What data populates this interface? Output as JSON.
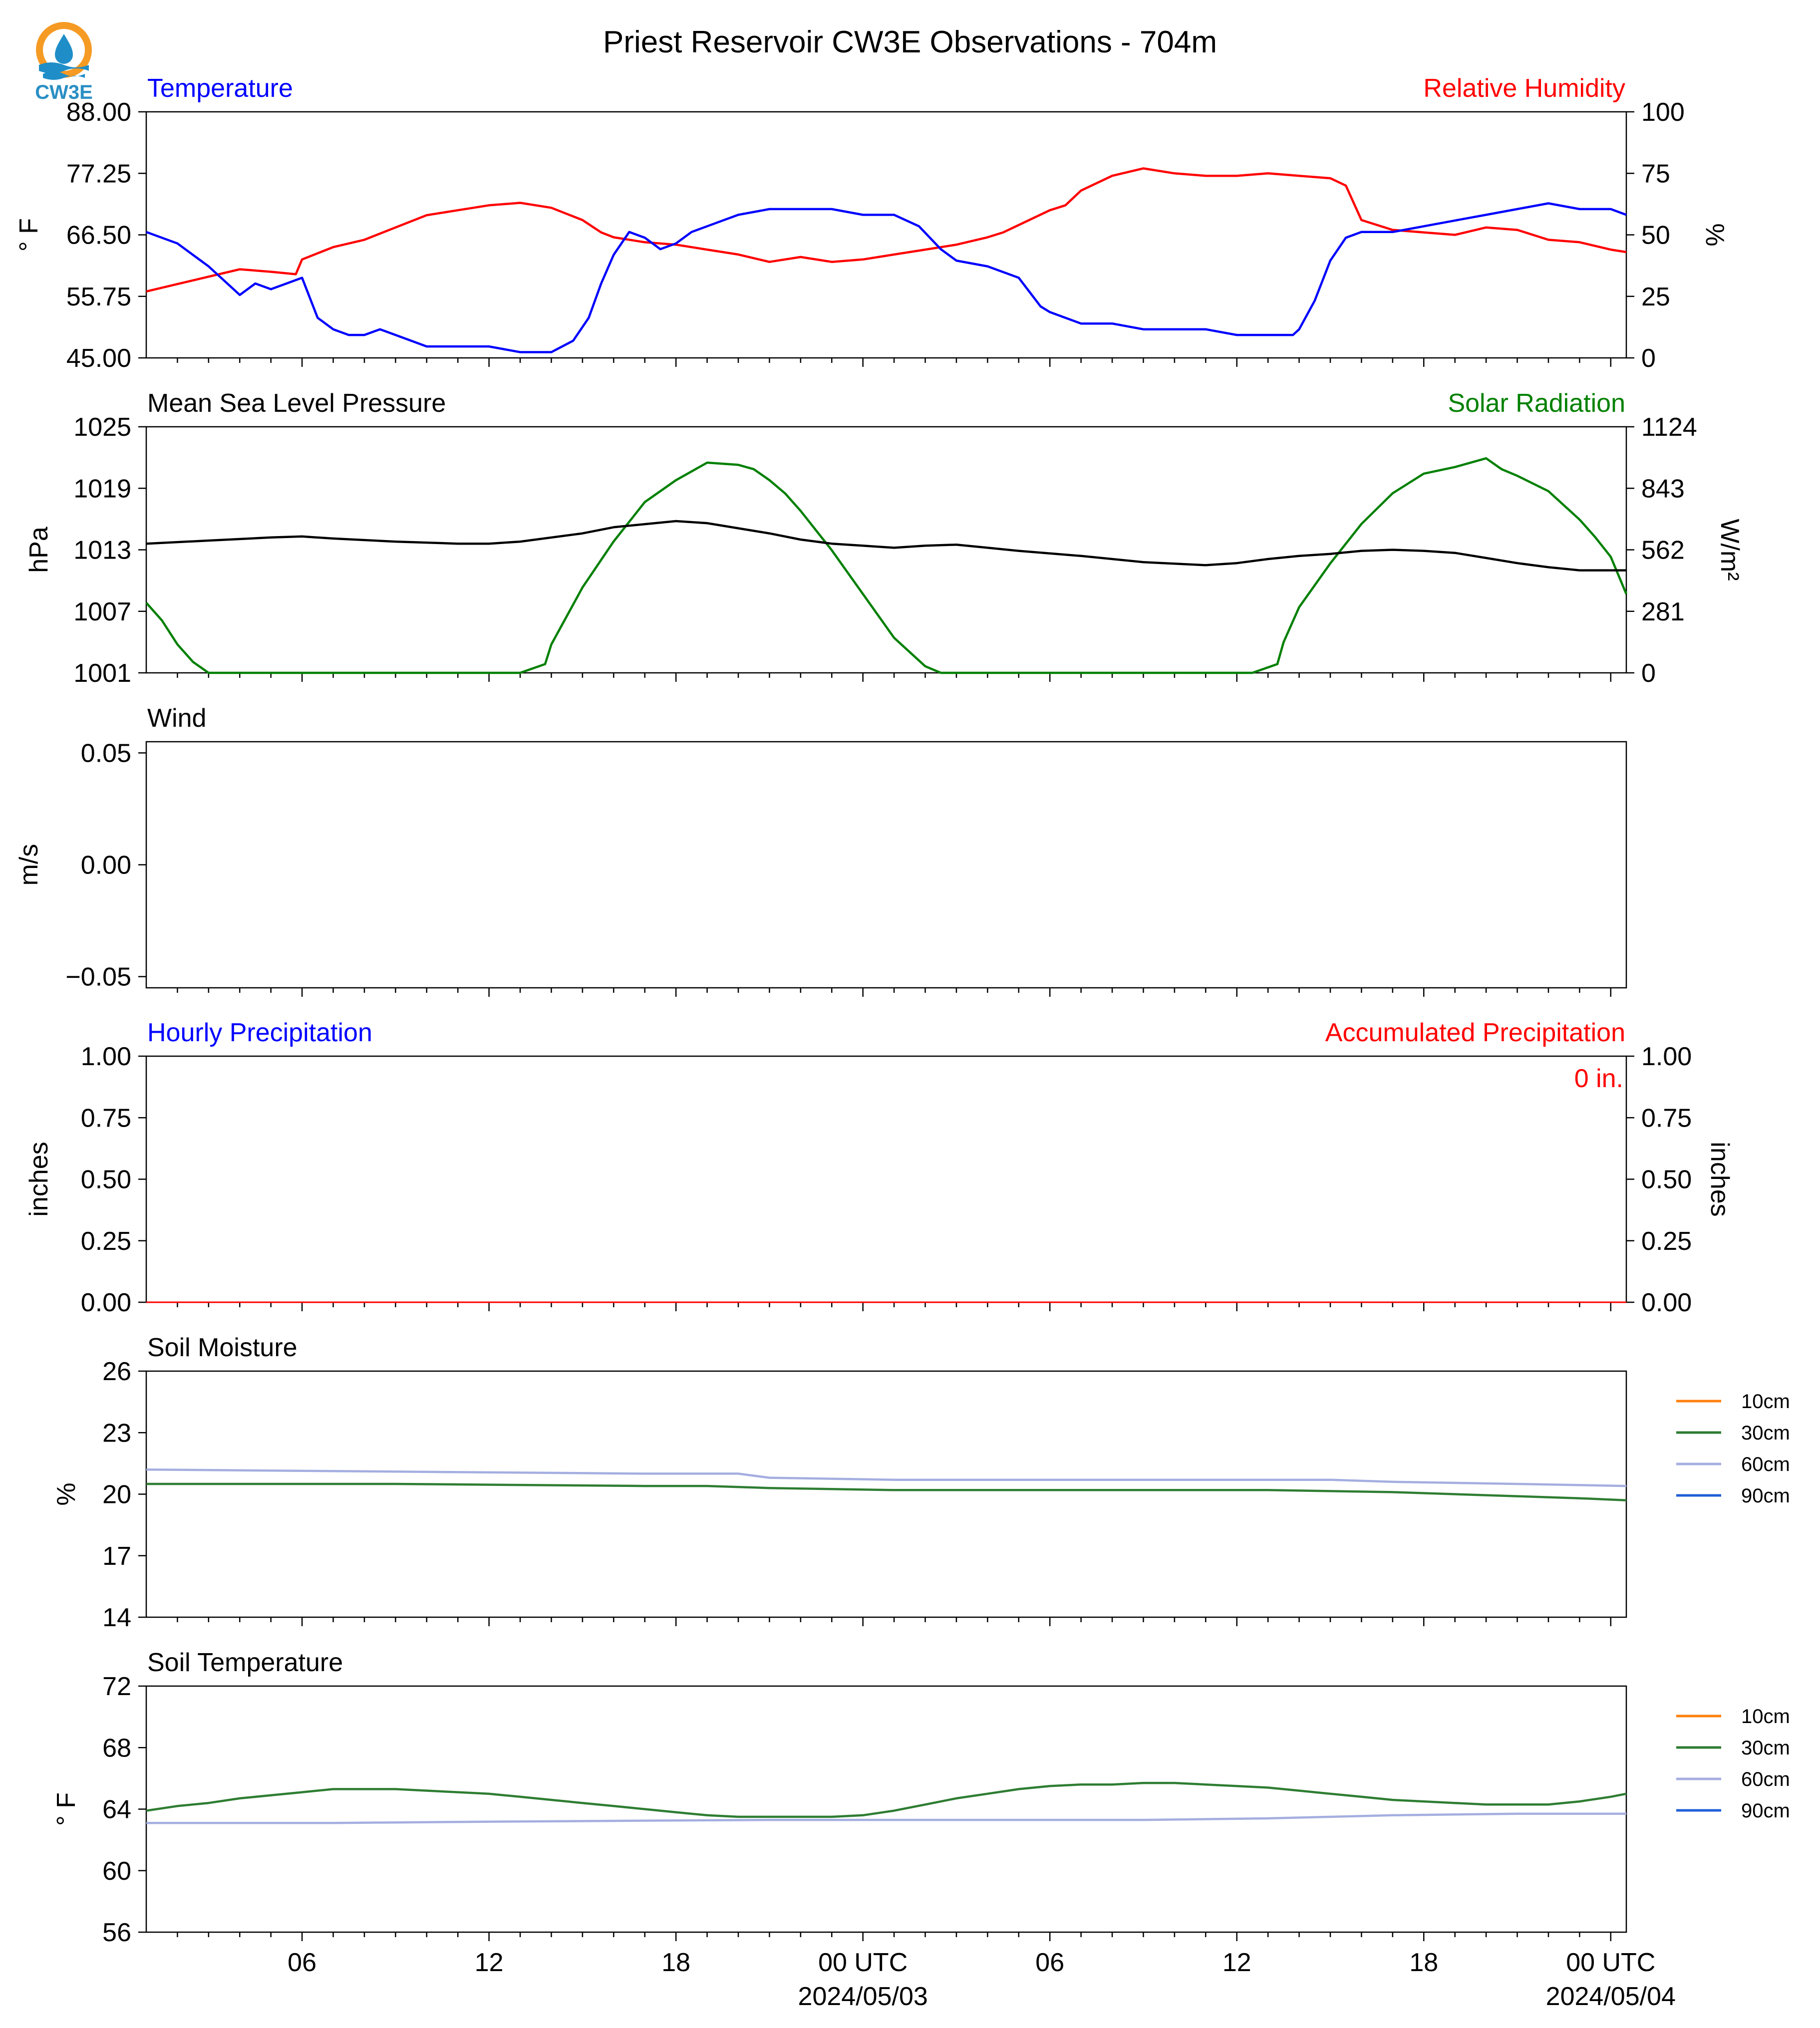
{
  "figure": {
    "title": "Priest Reservoir CW3E Observations - 704m",
    "logo_text": "CW3E",
    "colors": {
      "blue": "#0000ff",
      "red": "#ff0000",
      "green": "#008000",
      "black": "#000000",
      "orange": "#ff7f0e",
      "soil30": "#2e7d32",
      "soil60": "#a4aee0",
      "soil90": "#1f5fd6"
    }
  },
  "xaxis": {
    "range_hours": [
      0,
      47.5
    ],
    "tick_labels": [
      "06",
      "12",
      "18",
      "00 UTC",
      "06",
      "12",
      "18",
      "00 UTC"
    ],
    "tick_hours": [
      5,
      11,
      17,
      23,
      29,
      35,
      41,
      47
    ],
    "date_labels": [
      {
        "hour": 23,
        "text": "2024/05/03"
      },
      {
        "hour": 47,
        "text": "2024/05/04"
      }
    ]
  },
  "panels": {
    "temp_rh": {
      "left_title": "Temperature",
      "right_title": "Relative Humidity",
      "left_unit": "° F",
      "right_unit": "%",
      "left_ticks": [
        "88.00",
        "77.25",
        "66.50",
        "55.75",
        "45.00"
      ],
      "right_ticks": [
        "100",
        "75",
        "50",
        "25",
        "0"
      ]
    },
    "pressure_solar": {
      "left_title": "Mean Sea Level Pressure",
      "right_title": "Solar Radiation",
      "left_unit": "hPa",
      "right_unit": "W/m²",
      "left_ticks": [
        "1025",
        "1019",
        "1013",
        "1007",
        "1001"
      ],
      "right_ticks": [
        "1124",
        "843",
        "562",
        "281",
        "0"
      ]
    },
    "wind": {
      "left_title": "Wind",
      "left_unit": "m/s",
      "left_ticks": [
        "0.05",
        "0.00",
        "−0.05"
      ]
    },
    "precip": {
      "left_title": "Hourly Precipitation",
      "right_title": "Accumulated Precipitation",
      "left_unit": "inches",
      "right_unit": "inches",
      "left_ticks": [
        "1.00",
        "0.75",
        "0.50",
        "0.25",
        "0.00"
      ],
      "right_ticks": [
        "1.00",
        "0.75",
        "0.50",
        "0.25",
        "0.00"
      ],
      "accum_label": "0 in."
    },
    "soil_moisture": {
      "left_title": "Soil Moisture",
      "left_unit": "%",
      "left_ticks": [
        "26",
        "23",
        "20",
        "17",
        "14"
      ],
      "legend": [
        "10cm",
        "30cm",
        "60cm",
        "90cm"
      ]
    },
    "soil_temp": {
      "left_title": "Soil Temperature",
      "left_unit": "° F",
      "left_ticks": [
        "72",
        "68",
        "64",
        "60",
        "56"
      ],
      "legend": [
        "10cm",
        "30cm",
        "60cm",
        "90cm"
      ]
    }
  },
  "chart_data": [
    {
      "type": "line",
      "title": "Temperature / Relative Humidity",
      "x_unit": "hours since 2024/05/02 00 UTC",
      "xlim": [
        0,
        47.5
      ],
      "series": [
        {
          "name": "Temperature",
          "axis": "left",
          "ylim": [
            45,
            88
          ],
          "color": "#0000ff",
          "x": [
            0,
            1,
            2,
            2.8,
            3,
            3.5,
            4,
            4.5,
            5,
            5.5,
            6,
            6.5,
            7,
            7.5,
            8,
            8.5,
            9,
            10,
            11,
            12,
            13,
            13.7,
            14.2,
            14.6,
            15,
            15.5,
            16,
            16.5,
            17,
            17.5,
            18,
            18.5,
            19,
            20,
            21,
            22,
            23,
            24,
            24.8,
            25.5,
            26,
            27,
            28,
            28.7,
            29,
            29.5,
            30,
            31,
            32,
            33,
            34,
            35,
            36,
            36.8,
            37,
            37.5,
            38,
            38.5,
            39,
            40,
            41,
            42,
            43,
            44,
            45,
            46,
            47,
            47.5
          ],
          "y": [
            67,
            65,
            61,
            57,
            56,
            58,
            57,
            58,
            59,
            52,
            50,
            49,
            49,
            50,
            49,
            48,
            47,
            47,
            47,
            46,
            46,
            48,
            52,
            58,
            63,
            67,
            66,
            64,
            65,
            67,
            68,
            69,
            70,
            71,
            71,
            71,
            70,
            70,
            68,
            64,
            62,
            61,
            59,
            54,
            53,
            52,
            51,
            51,
            50,
            50,
            50,
            49,
            49,
            49,
            50,
            55,
            62,
            66,
            67,
            67,
            68,
            69,
            70,
            71,
            72,
            71,
            71,
            70
          ]
        },
        {
          "name": "Relative Humidity",
          "axis": "right",
          "ylim": [
            0,
            100
          ],
          "color": "#ff0000",
          "x": [
            0,
            1,
            2,
            3,
            4,
            4.8,
            5,
            6,
            7,
            8,
            9,
            10,
            11,
            12,
            12.5,
            13,
            14,
            14.6,
            15,
            16,
            17,
            18,
            19,
            20,
            21,
            22,
            23,
            24,
            25,
            26,
            27,
            27.5,
            28,
            29,
            29.5,
            30,
            31,
            32,
            33,
            34,
            35,
            36,
            37,
            38,
            38.5,
            39,
            40,
            41,
            42,
            43,
            44,
            45,
            46,
            47,
            47.5
          ],
          "y": [
            27,
            30,
            33,
            36,
            35,
            34,
            40,
            45,
            48,
            53,
            58,
            60,
            62,
            63,
            62,
            61,
            56,
            51,
            49,
            47,
            46,
            44,
            42,
            39,
            41,
            39,
            40,
            42,
            44,
            46,
            49,
            51,
            54,
            60,
            62,
            68,
            74,
            77,
            75,
            74,
            74,
            75,
            74,
            73,
            70,
            56,
            52,
            51,
            50,
            53,
            52,
            48,
            47,
            44,
            43
          ]
        }
      ]
    },
    {
      "type": "line",
      "title": "Mean Sea Level Pressure / Solar Radiation",
      "x_unit": "hours since 2024/05/02 00 UTC",
      "xlim": [
        0,
        47.5
      ],
      "series": [
        {
          "name": "Mean Sea Level Pressure",
          "axis": "left",
          "ylim": [
            1001,
            1025
          ],
          "color": "#000000",
          "x": [
            0,
            2,
            4,
            5,
            6,
            8,
            10,
            11,
            12,
            14,
            15,
            16,
            17,
            18,
            19,
            20,
            21,
            22,
            23,
            24,
            25,
            26,
            27,
            28,
            30,
            32,
            34,
            35,
            36,
            37,
            38,
            39,
            40,
            41,
            42,
            43,
            44,
            45,
            46,
            47,
            47.5
          ],
          "y": [
            1013.6,
            1013.9,
            1014.2,
            1014.3,
            1014.1,
            1013.8,
            1013.6,
            1013.6,
            1013.8,
            1014.6,
            1015.2,
            1015.5,
            1015.8,
            1015.6,
            1015.1,
            1014.6,
            1014.0,
            1013.6,
            1013.4,
            1013.2,
            1013.4,
            1013.5,
            1013.2,
            1012.9,
            1012.4,
            1011.8,
            1011.5,
            1011.7,
            1012.1,
            1012.4,
            1012.6,
            1012.9,
            1013.0,
            1012.9,
            1012.7,
            1012.2,
            1011.7,
            1011.3,
            1011.0,
            1011.0,
            1011.0
          ]
        },
        {
          "name": "Solar Radiation",
          "axis": "right",
          "ylim": [
            0,
            1124
          ],
          "color": "#008000",
          "x": [
            0,
            0.5,
            1,
            1.5,
            2,
            5,
            8,
            11,
            12,
            12.8,
            13,
            13.5,
            14,
            15,
            16,
            17,
            17.5,
            18,
            19,
            19.5,
            20,
            20.5,
            21,
            22,
            23,
            24,
            25,
            25.5,
            26,
            27,
            30,
            33,
            35.5,
            36.3,
            36.5,
            37,
            38,
            39,
            40,
            41,
            42,
            43,
            43.5,
            44,
            45,
            46,
            46.5,
            47,
            47.5
          ],
          "y": [
            320,
            240,
            130,
            50,
            0,
            0,
            0,
            0,
            0,
            40,
            130,
            260,
            390,
            600,
            780,
            880,
            920,
            960,
            950,
            930,
            880,
            820,
            740,
            560,
            360,
            160,
            30,
            0,
            0,
            0,
            0,
            0,
            0,
            40,
            140,
            300,
            500,
            680,
            820,
            910,
            940,
            980,
            930,
            900,
            830,
            700,
            620,
            530,
            360
          ]
        }
      ]
    },
    {
      "type": "line",
      "title": "Wind",
      "x_unit": "hours since 2024/05/02 00 UTC",
      "xlim": [
        0,
        47.5
      ],
      "ylim": [
        -0.055,
        0.055
      ],
      "series": []
    },
    {
      "type": "line",
      "title": "Hourly Precipitation / Accumulated Precipitation",
      "x_unit": "hours since 2024/05/02 00 UTC",
      "xlim": [
        0,
        47.5
      ],
      "series": [
        {
          "name": "Hourly Precipitation",
          "axis": "left",
          "ylim": [
            0,
            1
          ],
          "color": "#0000ff",
          "x": [
            0,
            47.5
          ],
          "y": [
            0,
            0
          ]
        },
        {
          "name": "Accumulated Precipitation",
          "axis": "right",
          "ylim": [
            0,
            1
          ],
          "color": "#ff0000",
          "x": [
            0,
            47.5
          ],
          "y": [
            0,
            0
          ]
        }
      ]
    },
    {
      "type": "line",
      "title": "Soil Moisture",
      "x_unit": "hours since 2024/05/02 00 UTC",
      "xlim": [
        0,
        47.5
      ],
      "ylim": [
        14,
        26
      ],
      "series": [
        {
          "name": "60cm",
          "color": "#a4aee0",
          "x": [
            0,
            8,
            16,
            19,
            20,
            24,
            30,
            38,
            40,
            44,
            47.5
          ],
          "y": [
            21.2,
            21.1,
            21.0,
            21.0,
            20.8,
            20.7,
            20.7,
            20.7,
            20.6,
            20.5,
            20.4
          ]
        },
        {
          "name": "30cm",
          "color": "#2e7d32",
          "x": [
            0,
            8,
            16,
            18,
            20,
            24,
            28,
            32,
            36,
            40,
            42,
            44,
            46,
            47.5
          ],
          "y": [
            20.5,
            20.5,
            20.4,
            20.4,
            20.3,
            20.2,
            20.2,
            20.2,
            20.2,
            20.1,
            20.0,
            19.9,
            19.8,
            19.7
          ]
        }
      ]
    },
    {
      "type": "line",
      "title": "Soil Temperature",
      "x_unit": "hours since 2024/05/02 00 UTC",
      "xlim": [
        0,
        47.5
      ],
      "ylim": [
        56,
        72
      ],
      "series": [
        {
          "name": "30cm",
          "color": "#2e7d32",
          "x": [
            0,
            1,
            2,
            3,
            4,
            5,
            6,
            8,
            9,
            10,
            11,
            12,
            13,
            14,
            15,
            16,
            17,
            18,
            19,
            20,
            21,
            22,
            23,
            24,
            25,
            26,
            27,
            28,
            29,
            30,
            31,
            32,
            33,
            34,
            35,
            36,
            37,
            38,
            39,
            40,
            41,
            42,
            43,
            44,
            45,
            46,
            47,
            47.5
          ],
          "y": [
            63.9,
            64.2,
            64.4,
            64.7,
            64.9,
            65.1,
            65.3,
            65.3,
            65.2,
            65.1,
            65.0,
            64.8,
            64.6,
            64.4,
            64.2,
            64.0,
            63.8,
            63.6,
            63.5,
            63.5,
            63.5,
            63.5,
            63.6,
            63.9,
            64.3,
            64.7,
            65.0,
            65.3,
            65.5,
            65.6,
            65.6,
            65.7,
            65.7,
            65.6,
            65.5,
            65.4,
            65.2,
            65.0,
            64.8,
            64.6,
            64.5,
            64.4,
            64.3,
            64.3,
            64.3,
            64.5,
            64.8,
            65.0
          ]
        },
        {
          "name": "60cm",
          "color": "#a4aee0",
          "x": [
            0,
            6,
            12,
            20,
            28,
            32,
            36,
            38,
            40,
            44,
            47.5
          ],
          "y": [
            63.1,
            63.1,
            63.2,
            63.3,
            63.3,
            63.3,
            63.4,
            63.5,
            63.6,
            63.7,
            63.7
          ]
        }
      ]
    }
  ]
}
